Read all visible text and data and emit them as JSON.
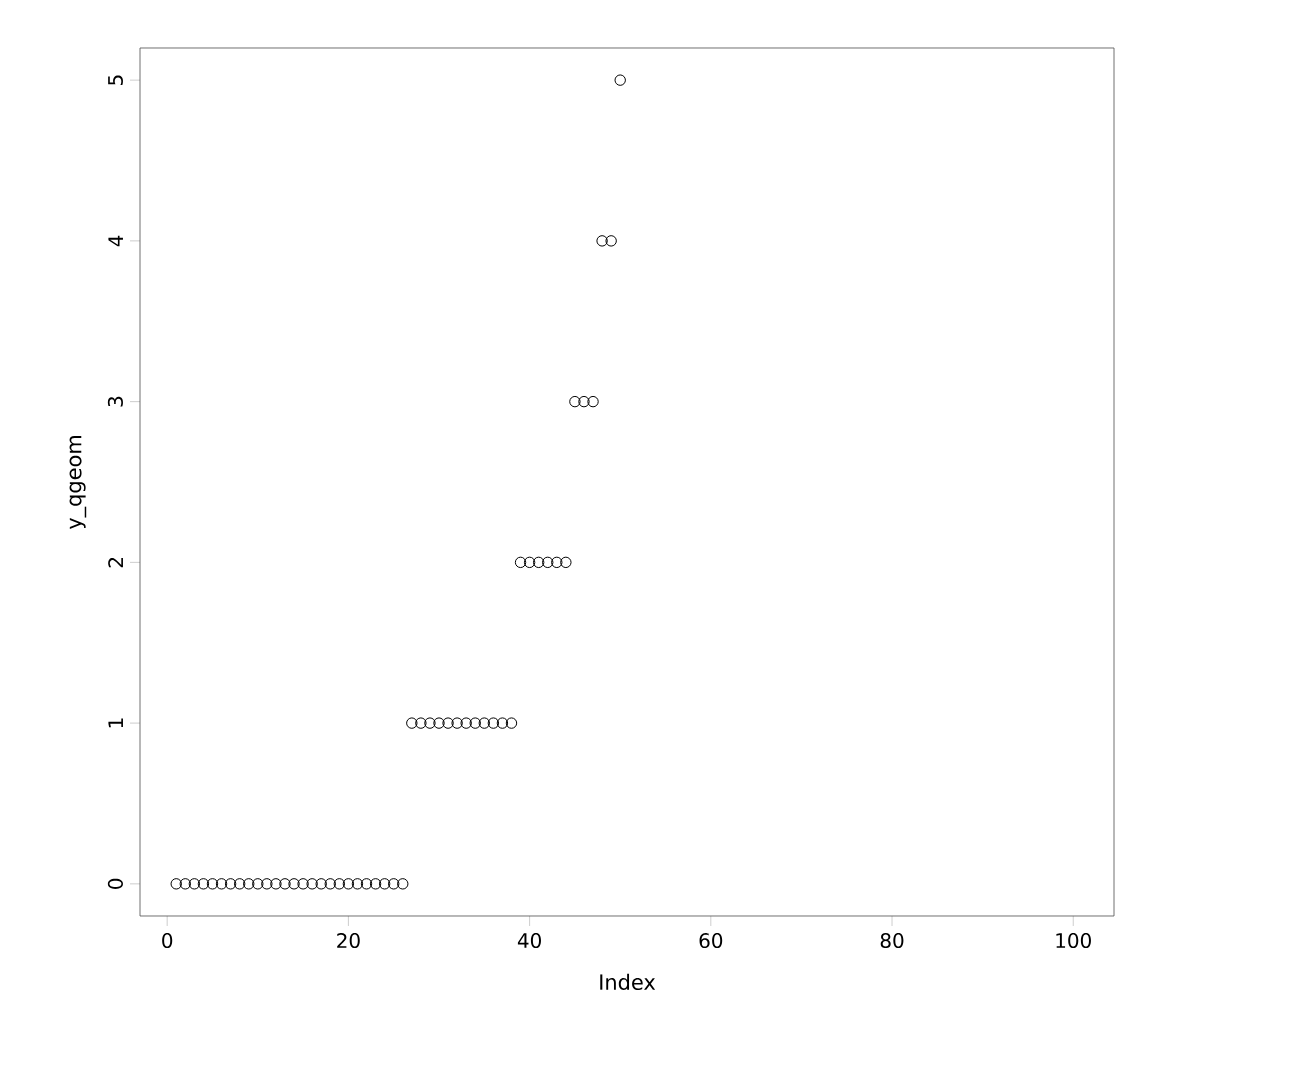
{
  "chart_data": {
    "type": "scatter",
    "xlabel": "Index",
    "ylabel": "y_qgeom",
    "x": [
      1,
      2,
      3,
      4,
      5,
      6,
      7,
      8,
      9,
      10,
      11,
      12,
      13,
      14,
      15,
      16,
      17,
      18,
      19,
      20,
      21,
      22,
      23,
      24,
      25,
      26,
      27,
      28,
      29,
      30,
      31,
      32,
      33,
      34,
      35,
      36,
      37,
      38,
      39,
      40,
      41,
      42,
      43,
      44,
      45,
      46,
      47,
      48,
      49,
      50
    ],
    "values": [
      0,
      0,
      0,
      0,
      0,
      0,
      0,
      0,
      0,
      0,
      0,
      0,
      0,
      0,
      0,
      0,
      0,
      0,
      0,
      0,
      0,
      0,
      0,
      0,
      0,
      0,
      1,
      1,
      1,
      1,
      1,
      1,
      1,
      1,
      1,
      1,
      1,
      1,
      2,
      2,
      2,
      2,
      2,
      2,
      3,
      3,
      3,
      4,
      4,
      5
    ],
    "color": "#000000",
    "marker": "circle",
    "xlim": [
      -3,
      104.5
    ],
    "ylim": [
      -0.2,
      5.2
    ],
    "xticks": [
      0,
      20,
      40,
      60,
      80,
      100
    ],
    "yticks": [
      0,
      1,
      2,
      3,
      4,
      5
    ]
  }
}
